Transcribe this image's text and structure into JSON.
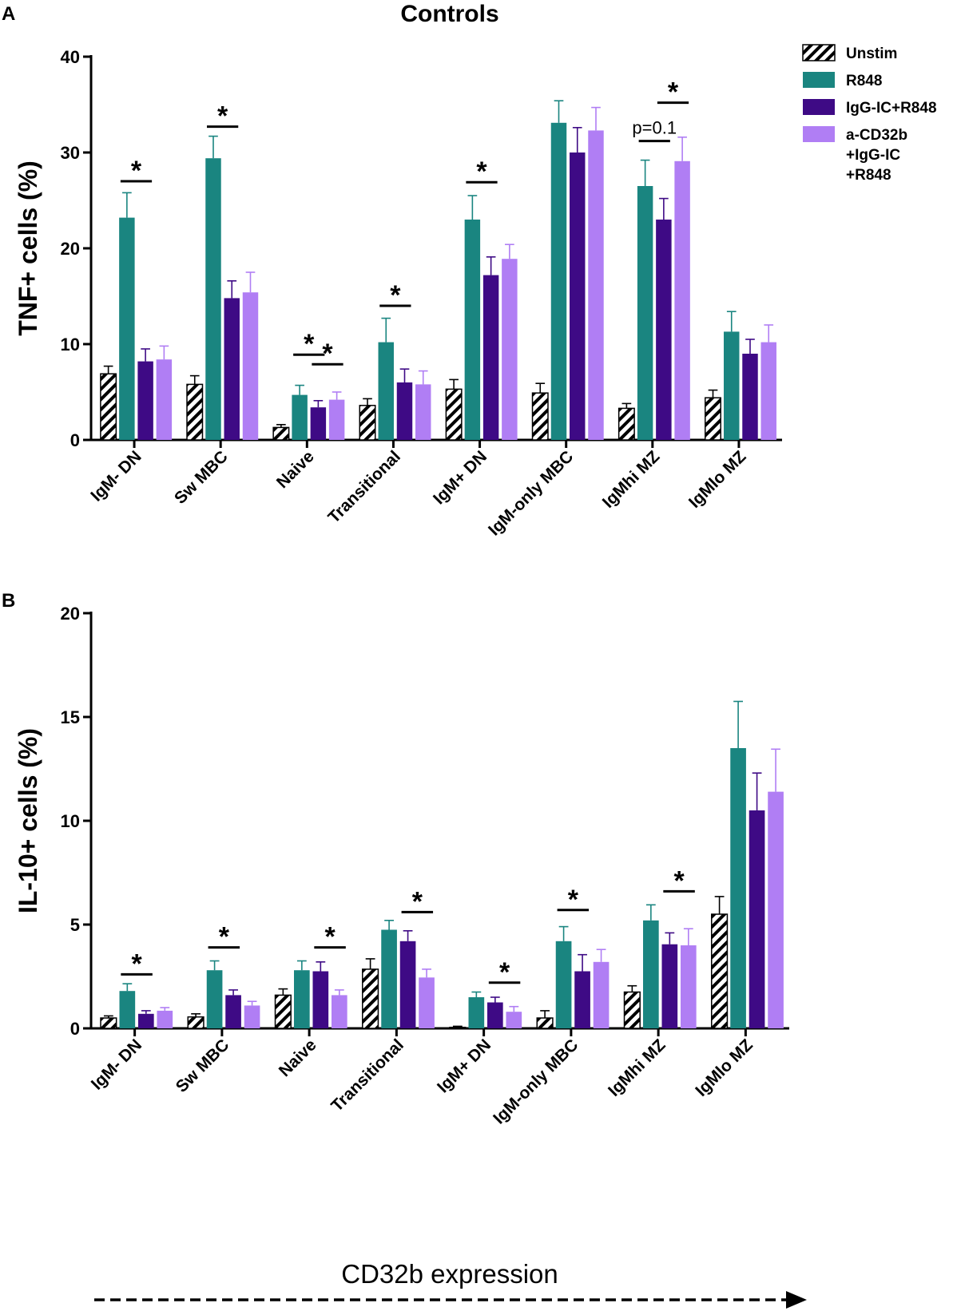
{
  "figure": {
    "panel_a_label": "A",
    "panel_b_label": "B",
    "title": "Controls",
    "arrow_label": "CD32b expression"
  },
  "colors": {
    "unstim_fill": "#ffffff",
    "unstim_stripe": "#000000",
    "r848": "#1a8580",
    "iggic_r848": "#3e0a85",
    "acd32b": "#b07ef4"
  },
  "chart_data": [
    {
      "type": "bar",
      "panel": "A",
      "title": "Controls",
      "xlabel": "",
      "ylabel": "TNF+ cells (%)",
      "ylim": [
        0,
        40
      ],
      "yticks": [
        "0",
        "10",
        "20",
        "30",
        "40"
      ],
      "grid": false,
      "legend_position": "top-right",
      "categories": [
        "IgM- DN",
        "Sw MBC",
        "Naive",
        "Transitional",
        "IgM+ DN",
        "IgM-only MBC",
        "IgMhi MZ",
        "IgMlo MZ"
      ],
      "series": [
        {
          "name": "Unstim",
          "pattern": "hatched",
          "values": [
            6.9,
            5.8,
            1.3,
            3.6,
            5.3,
            4.9,
            3.3,
            4.4
          ],
          "errors": [
            0.8,
            0.9,
            0.3,
            0.7,
            1.0,
            1.0,
            0.5,
            0.8
          ]
        },
        {
          "name": "R848",
          "values": [
            23.2,
            29.4,
            4.7,
            10.2,
            23.0,
            33.1,
            26.5,
            11.3
          ],
          "errors": [
            2.6,
            2.3,
            1.0,
            2.5,
            2.5,
            2.3,
            2.7,
            2.1
          ]
        },
        {
          "name": "IgG-IC+R848",
          "values": [
            8.2,
            14.8,
            3.4,
            6.0,
            17.2,
            30.0,
            23.0,
            9.0
          ],
          "errors": [
            1.3,
            1.8,
            0.7,
            1.4,
            1.9,
            2.6,
            2.2,
            1.5
          ]
        },
        {
          "name": "a-CD32b\n+IgG-IC\n+R848",
          "values": [
            8.4,
            15.4,
            4.2,
            5.8,
            18.9,
            32.3,
            29.1,
            10.2
          ],
          "errors": [
            1.4,
            2.1,
            0.8,
            1.4,
            1.5,
            2.4,
            2.5,
            1.8
          ]
        }
      ],
      "annotations": [
        {
          "text": "*",
          "category": "IgM- DN",
          "from": "R848",
          "to": "IgG-IC+R848",
          "y": 27.0
        },
        {
          "text": "*",
          "category": "Sw MBC",
          "from": "R848",
          "to": "IgG-IC+R848",
          "y": 32.7
        },
        {
          "text": "*",
          "category": "Naive",
          "from": "R848",
          "to": "IgG-IC+R848",
          "y": 8.9
        },
        {
          "text": "*",
          "category": "Naive",
          "from": "IgG-IC+R848",
          "to": "a-CD32b\n+IgG-IC\n+R848",
          "y": 7.9
        },
        {
          "text": "*",
          "category": "Transitional",
          "from": "R848",
          "to": "IgG-IC+R848",
          "y": 14.0
        },
        {
          "text": "*",
          "category": "IgM+ DN",
          "from": "R848",
          "to": "IgG-IC+R848",
          "y": 26.9
        },
        {
          "text": "p=0.1",
          "category": "IgMhi MZ",
          "from": "R848",
          "to": "IgG-IC+R848",
          "y": 31.2
        },
        {
          "text": "*",
          "category": "IgMhi MZ",
          "from": "IgG-IC+R848",
          "to": "a-CD32b\n+IgG-IC\n+R848",
          "y": 35.2
        }
      ]
    },
    {
      "type": "bar",
      "panel": "B",
      "title": "",
      "xlabel": "",
      "ylabel": "IL-10+ cells (%)",
      "ylim": [
        0,
        20
      ],
      "yticks": [
        "0",
        "5",
        "10",
        "15",
        "20"
      ],
      "grid": false,
      "categories": [
        "IgM- DN",
        "Sw MBC",
        "Naive",
        "Transitional",
        "IgM+ DN",
        "IgM-only MBC",
        "IgMhi MZ",
        "IgMlo MZ"
      ],
      "series": [
        {
          "name": "Unstim",
          "pattern": "hatched",
          "values": [
            0.5,
            0.55,
            1.6,
            2.85,
            0.05,
            0.5,
            1.75,
            5.5
          ],
          "errors": [
            0.1,
            0.15,
            0.3,
            0.5,
            0.05,
            0.35,
            0.3,
            0.85
          ]
        },
        {
          "name": "R848",
          "values": [
            1.8,
            2.8,
            2.8,
            4.75,
            1.5,
            4.2,
            5.2,
            13.5
          ],
          "errors": [
            0.35,
            0.45,
            0.45,
            0.45,
            0.25,
            0.7,
            0.75,
            2.25
          ]
        },
        {
          "name": "IgG-IC+R848",
          "values": [
            0.7,
            1.6,
            2.75,
            4.2,
            1.25,
            2.75,
            4.05,
            10.5
          ],
          "errors": [
            0.15,
            0.25,
            0.45,
            0.5,
            0.25,
            0.8,
            0.55,
            1.8
          ]
        },
        {
          "name": "a-CD32b\n+IgG-IC\n+R848",
          "values": [
            0.85,
            1.1,
            1.6,
            2.45,
            0.8,
            3.2,
            4.0,
            11.4
          ],
          "errors": [
            0.15,
            0.2,
            0.25,
            0.4,
            0.25,
            0.6,
            0.8,
            2.05
          ]
        }
      ],
      "annotations": [
        {
          "text": "*",
          "category": "IgM- DN",
          "from": "R848",
          "to": "IgG-IC+R848",
          "y": 2.6
        },
        {
          "text": "*",
          "category": "Sw MBC",
          "from": "R848",
          "to": "IgG-IC+R848",
          "y": 3.9
        },
        {
          "text": "*",
          "category": "Naive",
          "from": "IgG-IC+R848",
          "to": "a-CD32b\n+IgG-IC\n+R848",
          "y": 3.9
        },
        {
          "text": "*",
          "category": "Transitional",
          "from": "IgG-IC+R848",
          "to": "a-CD32b\n+IgG-IC\n+R848",
          "y": 5.6
        },
        {
          "text": "*",
          "category": "IgM+ DN",
          "from": "IgG-IC+R848",
          "to": "a-CD32b\n+IgG-IC\n+R848",
          "y": 2.2
        },
        {
          "text": "*",
          "category": "IgM-only MBC",
          "from": "R848",
          "to": "IgG-IC+R848",
          "y": 5.7
        },
        {
          "text": "*",
          "category": "IgMhi MZ",
          "from": "IgG-IC+R848",
          "to": "a-CD32b\n+IgG-IC\n+R848",
          "y": 6.6
        }
      ]
    }
  ]
}
